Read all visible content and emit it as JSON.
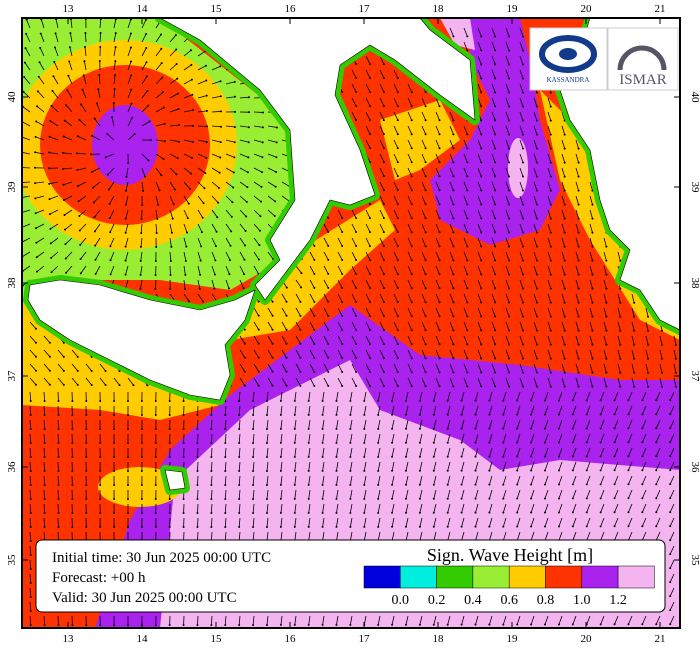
{
  "axes": {
    "lon_labels": [
      "13",
      "14",
      "15",
      "16",
      "17",
      "18",
      "19",
      "20",
      "21"
    ],
    "lat_labels": [
      "40",
      "39",
      "38",
      "37",
      "36",
      "35"
    ]
  },
  "logos": [
    "KASSANDRA",
    "ISMAR"
  ],
  "info": {
    "initial_time": "Initial time: 30 Jun 2025 00:00 UTC",
    "forecast": "Forecast: +00 h",
    "valid": "Valid: 30 Jun 2025 00:00 UTC"
  },
  "legend": {
    "title": "Sign. Wave Height [m]",
    "colors": [
      "#0000dd",
      "#00eedd",
      "#33cc00",
      "#99ee33",
      "#ffcc00",
      "#ff3300",
      "#aa22ee",
      "#f4b4f0"
    ],
    "labels": [
      "0.0",
      "0.2",
      "0.4",
      "0.6",
      "0.8",
      "1.0",
      "1.2"
    ]
  }
}
